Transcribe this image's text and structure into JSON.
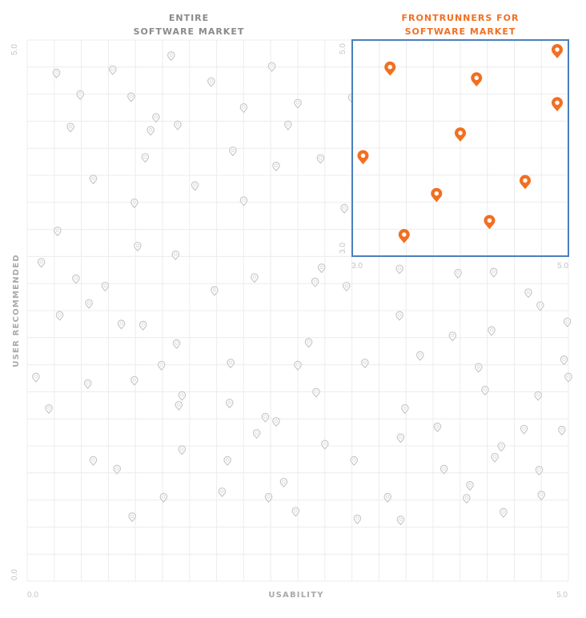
{
  "colors": {
    "grid": "#ececec",
    "dot": "#c8c8c8",
    "accent": "#f26f21",
    "inset_border": "#4a7fbd",
    "title_gray": "#8a8a8a"
  },
  "chart_data": [
    {
      "type": "scatter",
      "title_lines": [
        "ENTIRE",
        "SOFTWARE MARKET"
      ],
      "xlabel": "USABILITY",
      "ylabel": "USER RECOMMENDED",
      "xlim": [
        0,
        5
      ],
      "ylim": [
        0,
        5
      ],
      "x_tick_labels": [
        "0.0",
        "5.0"
      ],
      "y_tick_labels": [
        "0.0",
        "5.0"
      ],
      "grid": true,
      "marker": "pin",
      "points": [
        [
          0.27,
          4.7
        ],
        [
          0.79,
          4.73
        ],
        [
          1.33,
          4.86
        ],
        [
          2.26,
          4.76
        ],
        [
          0.49,
          4.5
        ],
        [
          0.96,
          4.48
        ],
        [
          1.7,
          4.62
        ],
        [
          2.0,
          4.38
        ],
        [
          2.5,
          4.42
        ],
        [
          1.19,
          4.29
        ],
        [
          3.0,
          4.47
        ],
        [
          0.4,
          4.2
        ],
        [
          1.14,
          4.17
        ],
        [
          1.39,
          4.22
        ],
        [
          2.41,
          4.22
        ],
        [
          0.61,
          3.72
        ],
        [
          1.09,
          3.92
        ],
        [
          1.55,
          3.66
        ],
        [
          1.9,
          3.98
        ],
        [
          2.3,
          3.84
        ],
        [
          2.71,
          3.91
        ],
        [
          3.22,
          4.0
        ],
        [
          0.28,
          3.24
        ],
        [
          0.99,
          3.5
        ],
        [
          1.02,
          3.1
        ],
        [
          1.37,
          3.02
        ],
        [
          2.0,
          3.52
        ],
        [
          2.93,
          3.45
        ],
        [
          0.13,
          2.95
        ],
        [
          0.45,
          2.8
        ],
        [
          0.72,
          2.73
        ],
        [
          1.73,
          2.69
        ],
        [
          2.1,
          2.81
        ],
        [
          3.44,
          2.89
        ],
        [
          3.98,
          2.85
        ],
        [
          0.3,
          2.46
        ],
        [
          0.87,
          2.38
        ],
        [
          1.38,
          2.2
        ],
        [
          1.88,
          2.02
        ],
        [
          2.5,
          2.0
        ],
        [
          2.6,
          2.21
        ],
        [
          2.72,
          2.9
        ],
        [
          3.12,
          2.02
        ],
        [
          3.63,
          2.09
        ],
        [
          4.29,
          2.32
        ],
        [
          4.74,
          2.55
        ],
        [
          4.99,
          2.4
        ],
        [
          0.08,
          1.89
        ],
        [
          0.56,
          1.83
        ],
        [
          0.99,
          1.86
        ],
        [
          1.43,
          1.72
        ],
        [
          1.87,
          1.65
        ],
        [
          2.3,
          1.48
        ],
        [
          2.67,
          1.75
        ],
        [
          3.49,
          1.6
        ],
        [
          4.23,
          1.77
        ],
        [
          4.72,
          1.72
        ],
        [
          5.0,
          1.89
        ],
        [
          0.61,
          1.12
        ],
        [
          1.43,
          1.22
        ],
        [
          2.12,
          1.37
        ],
        [
          3.02,
          1.12
        ],
        [
          3.79,
          1.43
        ],
        [
          4.17,
          1.98
        ],
        [
          4.59,
          1.41
        ],
        [
          4.96,
          2.05
        ],
        [
          4.63,
          2.67
        ],
        [
          3.44,
          2.46
        ],
        [
          2.66,
          2.77
        ],
        [
          4.31,
          2.86
        ],
        [
          1.07,
          2.37
        ],
        [
          0.57,
          2.57
        ],
        [
          1.4,
          1.63
        ],
        [
          2.2,
          1.52
        ],
        [
          2.95,
          2.73
        ],
        [
          3.45,
          1.33
        ],
        [
          3.93,
          2.27
        ],
        [
          4.94,
          1.4
        ],
        [
          0.2,
          1.6
        ],
        [
          1.24,
          2.0
        ],
        [
          4.38,
          1.25
        ],
        [
          4.32,
          1.15
        ],
        [
          3.45,
          0.57
        ],
        [
          3.85,
          1.04
        ],
        [
          4.09,
          0.89
        ],
        [
          0.83,
          1.04
        ],
        [
          1.85,
          1.12
        ],
        [
          2.75,
          1.27
        ],
        [
          4.73,
          1.03
        ],
        [
          4.4,
          0.64
        ],
        [
          1.8,
          0.83
        ],
        [
          2.23,
          0.78
        ],
        [
          2.48,
          0.65
        ],
        [
          1.26,
          0.78
        ],
        [
          0.97,
          0.6
        ],
        [
          2.37,
          0.92
        ],
        [
          3.33,
          0.78
        ],
        [
          4.06,
          0.77
        ],
        [
          4.75,
          0.8
        ],
        [
          3.05,
          0.58
        ]
      ]
    },
    {
      "type": "scatter",
      "title_lines": [
        "FRONTRUNNERS FOR",
        "SOFTWARE MARKET"
      ],
      "xlim": [
        3,
        5
      ],
      "ylim": [
        3,
        5
      ],
      "x_tick_labels": [
        "3.0",
        "5.0"
      ],
      "y_tick_labels": [
        "3.0",
        "5.0"
      ],
      "grid": true,
      "marker": "pin",
      "points": [
        [
          3.35,
          4.75
        ],
        [
          4.15,
          4.65
        ],
        [
          4.93,
          4.92
        ],
        [
          5.0,
          4.42
        ],
        [
          3.1,
          3.93
        ],
        [
          4.0,
          4.14
        ],
        [
          3.78,
          3.58
        ],
        [
          4.6,
          3.7
        ],
        [
          4.27,
          3.33
        ],
        [
          3.48,
          3.2
        ]
      ]
    }
  ]
}
